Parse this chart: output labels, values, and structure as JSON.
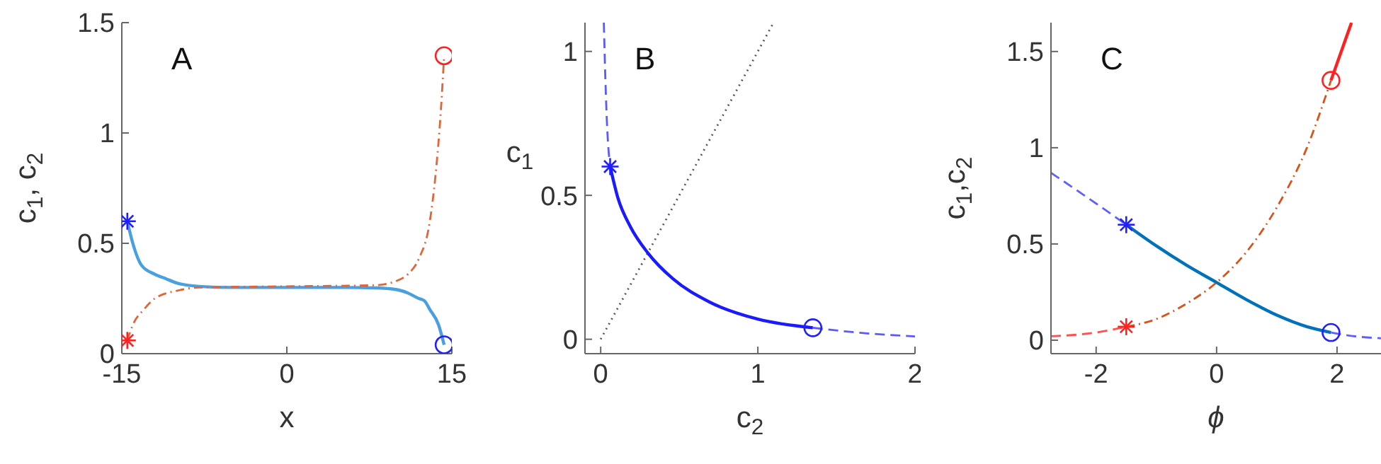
{
  "chart_data": [
    {
      "type": "line",
      "xlabel": "x",
      "ylabel": "c$_{1}$, c$_{2}$",
      "annotations": [
        "A"
      ],
      "xlim": [
        -15,
        15
      ],
      "ylim": [
        0,
        1.5
      ],
      "xticks": [
        -15,
        0,
        15
      ],
      "yticks": [
        0,
        0.5,
        1,
        1.5
      ],
      "grid": false,
      "legend": false,
      "series": [
        {
          "type": "line",
          "color": "#4a9fe0",
          "line_style": "solid",
          "x": [
            -14.5,
            -14,
            -13.2,
            -12,
            -11,
            -10,
            -8,
            -5,
            0,
            5,
            8,
            10,
            11,
            12,
            12.5,
            13,
            13.8,
            14.3
          ],
          "values": [
            0.6,
            0.5,
            0.4,
            0.36,
            0.34,
            0.32,
            0.305,
            0.3,
            0.3,
            0.3,
            0.298,
            0.29,
            0.275,
            0.25,
            0.24,
            0.2,
            0.13,
            0.04
          ]
        },
        {
          "type": "line",
          "color": "#e0663a",
          "line_style": "dashdot",
          "x": [
            -14.5,
            -14,
            -13,
            -12,
            -10,
            -8,
            0,
            8,
            10,
            11,
            12,
            13,
            13.5,
            14,
            14.3
          ],
          "values": [
            0.06,
            0.13,
            0.2,
            0.25,
            0.285,
            0.3,
            0.305,
            0.31,
            0.33,
            0.36,
            0.43,
            0.6,
            0.8,
            1.1,
            1.35
          ]
        },
        {
          "type": "scatter",
          "marker": "cross",
          "color": "#2020ff",
          "x": [
            -14.5
          ],
          "values": [
            0.6
          ]
        },
        {
          "type": "scatter",
          "marker": "cross",
          "color": "#ff2020",
          "x": [
            -14.5
          ],
          "values": [
            0.06
          ]
        },
        {
          "type": "scatter",
          "marker": "circle",
          "color": "#ff2020",
          "x": [
            14.3
          ],
          "values": [
            1.35
          ]
        },
        {
          "type": "scatter",
          "marker": "circle",
          "color": "#2020ff",
          "x": [
            14.3
          ],
          "values": [
            0.04
          ]
        }
      ]
    },
    {
      "type": "line",
      "xlabel": "c$_{2}$",
      "ylabel": "c$_{1}$",
      "annotations": [
        "B"
      ],
      "xlim": [
        -0.1,
        2
      ],
      "ylim": [
        -0.05,
        1.1
      ],
      "xticks": [
        0,
        1,
        2
      ],
      "yticks": [
        0,
        0.5,
        1
      ],
      "grid": false,
      "legend": false,
      "series": [
        {
          "type": "line",
          "color": "#555555",
          "line_style": "dotted",
          "x": [
            0,
            1.1
          ],
          "values": [
            0,
            1.1
          ]
        },
        {
          "type": "line",
          "color": "#5a5aff",
          "line_style": "dashed",
          "x": [
            0.02,
            0.03,
            0.04,
            0.06
          ],
          "values": [
            1.1,
            0.9,
            0.75,
            0.6
          ]
        },
        {
          "type": "line",
          "color": "#1a1aff",
          "line_style": "solid",
          "x": [
            0.06,
            0.11,
            0.19,
            0.3,
            0.46,
            0.69,
            1.0,
            1.35
          ],
          "values": [
            0.6,
            0.49,
            0.39,
            0.3,
            0.21,
            0.13,
            0.07,
            0.04
          ]
        },
        {
          "type": "line",
          "color": "#5a5aff",
          "line_style": "dashed",
          "x": [
            1.35,
            1.6,
            2
          ],
          "values": [
            0.04,
            0.025,
            0.01
          ]
        },
        {
          "type": "scatter",
          "marker": "cross",
          "color": "#2020ff",
          "x": [
            0.06
          ],
          "values": [
            0.6
          ]
        },
        {
          "type": "scatter",
          "marker": "circle",
          "color": "#2020ff",
          "x": [
            1.35
          ],
          "values": [
            0.04
          ]
        }
      ]
    },
    {
      "type": "line",
      "xlabel": "ϕ",
      "ylabel": "c$_{1}$,c$_{2}$",
      "annotations": [
        "C"
      ],
      "xlim": [
        -2.75,
        2.73
      ],
      "ylim": [
        -0.07,
        1.65
      ],
      "xticks": [
        -2,
        0,
        2
      ],
      "yticks": [
        0,
        0.5,
        1,
        1.5
      ],
      "grid": false,
      "legend": false,
      "series": [
        {
          "type": "line",
          "color": "#6060ff",
          "line_style": "dashed",
          "x": [
            -2.75,
            -2,
            -1.5
          ],
          "values": [
            0.87,
            0.71,
            0.6
          ]
        },
        {
          "type": "line",
          "color": "#0072bd",
          "line_style": "solid",
          "x": [
            -1.5,
            -1,
            -0.5,
            0,
            0.5,
            1,
            1.5,
            1.9
          ],
          "values": [
            0.6,
            0.49,
            0.39,
            0.3,
            0.21,
            0.13,
            0.07,
            0.04
          ]
        },
        {
          "type": "line",
          "color": "#6060ff",
          "line_style": "dashed",
          "x": [
            1.9,
            2.3,
            2.73
          ],
          "values": [
            0.04,
            0.02,
            0.01
          ]
        },
        {
          "type": "line",
          "color": "#ff5050",
          "line_style": "dashed",
          "x": [
            -2.75,
            -2,
            -1.5
          ],
          "values": [
            0.02,
            0.04,
            0.07
          ]
        },
        {
          "type": "line",
          "color": "#d95319",
          "line_style": "dashdot",
          "x": [
            -1.5,
            -1,
            -0.5,
            0,
            0.5,
            1,
            1.5,
            1.9
          ],
          "values": [
            0.07,
            0.11,
            0.19,
            0.3,
            0.46,
            0.69,
            1.0,
            1.35
          ]
        },
        {
          "type": "line",
          "color": "#ff2020",
          "line_style": "solid",
          "x": [
            1.9,
            2.24
          ],
          "values": [
            1.35,
            1.65
          ]
        },
        {
          "type": "scatter",
          "marker": "cross",
          "color": "#2020ff",
          "x": [
            -1.5
          ],
          "values": [
            0.6
          ]
        },
        {
          "type": "scatter",
          "marker": "cross",
          "color": "#ff2020",
          "x": [
            -1.5
          ],
          "values": [
            0.07
          ]
        },
        {
          "type": "scatter",
          "marker": "circle",
          "color": "#ff2020",
          "x": [
            1.9
          ],
          "values": [
            1.35
          ]
        },
        {
          "type": "scatter",
          "marker": "circle",
          "color": "#2020ff",
          "x": [
            1.9
          ],
          "values": [
            0.04
          ]
        }
      ]
    }
  ]
}
